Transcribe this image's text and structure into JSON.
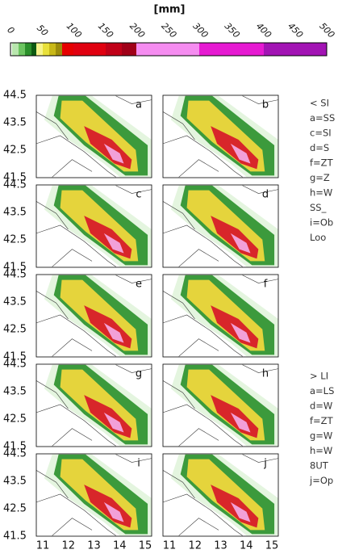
{
  "colorbar": {
    "unit": "[mm]",
    "ticks": [
      "0",
      "50",
      "100",
      "150",
      "200",
      "250",
      "300",
      "350",
      "400",
      "450",
      "500"
    ]
  },
  "y_axis": {
    "ticks": [
      "44.5",
      "43.5",
      "42.5",
      "41.5"
    ]
  },
  "x_axis": {
    "ticks": [
      "11",
      "12",
      "13",
      "14",
      "15"
    ]
  },
  "panels": [
    {
      "label": "a"
    },
    {
      "label": "b"
    },
    {
      "label": "c"
    },
    {
      "label": "d"
    },
    {
      "label": "e"
    },
    {
      "label": "f"
    },
    {
      "label": "g"
    },
    {
      "label": "h"
    },
    {
      "label": "i"
    },
    {
      "label": "j"
    }
  ],
  "side_notes": {
    "group1": [
      "< SI",
      "a=SS",
      "c=SI",
      "d=S",
      "f=ZT",
      "g=Z",
      "h=W",
      "SS_",
      "i=Ob",
      "Loo"
    ],
    "group2": [
      "> LI",
      "a=LS",
      "d=W",
      "f=ZT",
      "g=W",
      "h=W",
      "8UT",
      "j=Op"
    ]
  }
}
